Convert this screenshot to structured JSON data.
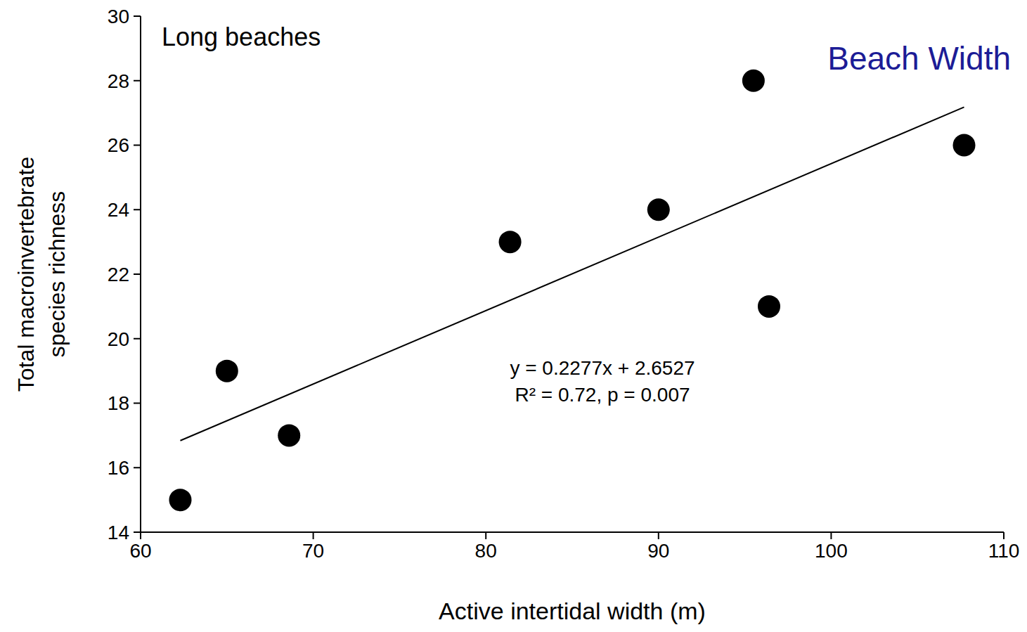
{
  "chart_data": {
    "type": "scatter",
    "title": "Long beaches",
    "subtitle": "Beach Width",
    "xlabel": "Active intertidal width (m)",
    "ylabel": "Total macroinvertebrate species richness",
    "x": [
      62.3,
      65.0,
      68.6,
      81.4,
      90.0,
      95.5,
      96.4,
      107.7
    ],
    "values": [
      15,
      19,
      17,
      23,
      24,
      28,
      21,
      26
    ],
    "color": "#000000",
    "marker": "circle",
    "trend_line": {
      "x": [
        62.3,
        107.7
      ],
      "y": [
        16.84,
        27.18
      ],
      "color": "#000000"
    },
    "annotations": [
      "y = 0.2277x + 2.6527",
      "R² = 0.72, p = 0.007"
    ],
    "xlim": [
      60,
      110
    ],
    "xticks": [
      60,
      70,
      80,
      90,
      100,
      110
    ],
    "ylim": [
      14,
      30
    ],
    "yticks": [
      14,
      16,
      18,
      20,
      22,
      24,
      26,
      28,
      30
    ],
    "grid": false
  }
}
